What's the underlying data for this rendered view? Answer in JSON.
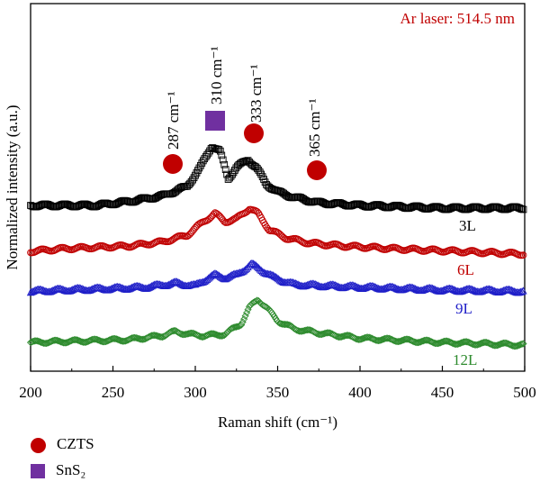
{
  "chart_data": {
    "type": "scatter",
    "title": "",
    "xlabel": "Raman shift (cm⁻¹)",
    "ylabel": "Normalized intensity (a.u.)",
    "xlim": [
      200,
      500
    ],
    "x_ticks": [
      200,
      250,
      300,
      350,
      400,
      450,
      500
    ],
    "y_ticks": [],
    "grid": false,
    "laser_label": "Ar laser: 514.5 nm",
    "colors": {
      "3L": "#000000",
      "6L": "#c00000",
      "9L": "#1f1fc8",
      "12L": "#2e8b2e",
      "czts": "#c00000",
      "sns2": "#7030a0",
      "laser": "#c00000"
    },
    "series": [
      {
        "name": "3L",
        "marker": "square",
        "points": [
          [
            200,
            0.1
          ],
          [
            220,
            0.1
          ],
          [
            240,
            0.1
          ],
          [
            260,
            0.115
          ],
          [
            280,
            0.135
          ],
          [
            295,
            0.17
          ],
          [
            303,
            0.24
          ],
          [
            310,
            0.32
          ],
          [
            315,
            0.3
          ],
          [
            320,
            0.2
          ],
          [
            325,
            0.24
          ],
          [
            332,
            0.27
          ],
          [
            337,
            0.24
          ],
          [
            343,
            0.18
          ],
          [
            350,
            0.15
          ],
          [
            360,
            0.13
          ],
          [
            375,
            0.11
          ],
          [
            400,
            0.1
          ],
          [
            450,
            0.09
          ],
          [
            500,
            0.09
          ]
        ]
      },
      {
        "name": "6L",
        "marker": "circle",
        "points": [
          [
            200,
            0.11
          ],
          [
            220,
            0.12
          ],
          [
            240,
            0.125
          ],
          [
            260,
            0.13
          ],
          [
            280,
            0.145
          ],
          [
            295,
            0.17
          ],
          [
            305,
            0.22
          ],
          [
            312,
            0.25
          ],
          [
            318,
            0.22
          ],
          [
            325,
            0.23
          ],
          [
            333,
            0.27
          ],
          [
            338,
            0.25
          ],
          [
            345,
            0.19
          ],
          [
            355,
            0.16
          ],
          [
            370,
            0.14
          ],
          [
            390,
            0.13
          ],
          [
            420,
            0.12
          ],
          [
            460,
            0.11
          ],
          [
            500,
            0.1
          ]
        ]
      },
      {
        "name": "9L",
        "marker": "triangle",
        "points": [
          [
            200,
            0.1
          ],
          [
            220,
            0.105
          ],
          [
            250,
            0.11
          ],
          [
            270,
            0.115
          ],
          [
            288,
            0.13
          ],
          [
            300,
            0.12
          ],
          [
            308,
            0.15
          ],
          [
            312,
            0.16
          ],
          [
            318,
            0.15
          ],
          [
            325,
            0.16
          ],
          [
            334,
            0.2
          ],
          [
            340,
            0.18
          ],
          [
            348,
            0.15
          ],
          [
            360,
            0.125
          ],
          [
            380,
            0.12
          ],
          [
            400,
            0.115
          ],
          [
            450,
            0.105
          ],
          [
            500,
            0.1
          ]
        ]
      },
      {
        "name": "12L",
        "marker": "diamond",
        "points": [
          [
            200,
            0.1
          ],
          [
            230,
            0.105
          ],
          [
            260,
            0.11
          ],
          [
            280,
            0.125
          ],
          [
            288,
            0.14
          ],
          [
            296,
            0.13
          ],
          [
            305,
            0.125
          ],
          [
            318,
            0.13
          ],
          [
            328,
            0.17
          ],
          [
            333,
            0.23
          ],
          [
            338,
            0.26
          ],
          [
            343,
            0.23
          ],
          [
            350,
            0.18
          ],
          [
            360,
            0.15
          ],
          [
            375,
            0.135
          ],
          [
            400,
            0.115
          ],
          [
            450,
            0.1
          ],
          [
            500,
            0.09
          ]
        ]
      }
    ],
    "annotations": [
      {
        "text": "287 cm⁻¹",
        "x": 287,
        "marker": "circle",
        "phase": "CZTS"
      },
      {
        "text": "310 cm⁻¹",
        "x": 310,
        "marker": "square",
        "phase": "SnS₂"
      },
      {
        "text": "333 cm⁻¹",
        "x": 333,
        "marker": "circle",
        "phase": "CZTS"
      },
      {
        "text": "365 cm⁻¹",
        "x": 365,
        "marker": "circle",
        "phase": "CZTS"
      }
    ],
    "legend": [
      {
        "label": "CZTS",
        "marker": "circle"
      },
      {
        "label": "SnS₂",
        "marker": "square"
      }
    ]
  }
}
